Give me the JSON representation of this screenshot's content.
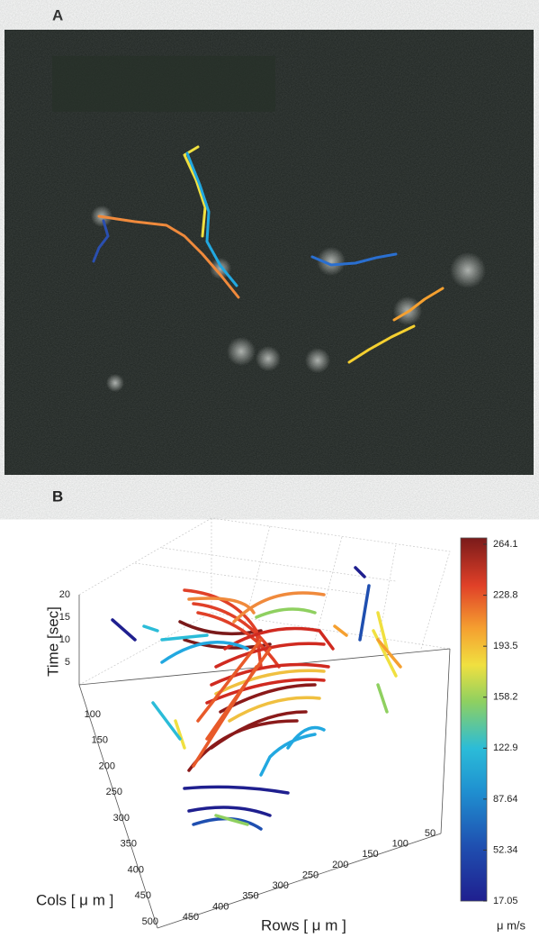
{
  "panels": {
    "a": {
      "label": "A"
    },
    "b": {
      "label": "B",
      "axes": {
        "time": {
          "label": "Time [sec]",
          "ticks": [
            20,
            15,
            10,
            5
          ]
        },
        "cols": {
          "label": "Cols [ μ m ]",
          "ticks": [
            100,
            150,
            200,
            250,
            300,
            350,
            400,
            450,
            500
          ]
        },
        "rows": {
          "label": "Rows [ μ m ]",
          "ticks": [
            450,
            400,
            350,
            300,
            250,
            200,
            150,
            100,
            50
          ]
        }
      },
      "colorbar": {
        "label": "μ m/s",
        "ticks": [
          264.1,
          228.8,
          193.5,
          158.2,
          122.9,
          87.64,
          52.34,
          17.05
        ]
      }
    }
  }
}
